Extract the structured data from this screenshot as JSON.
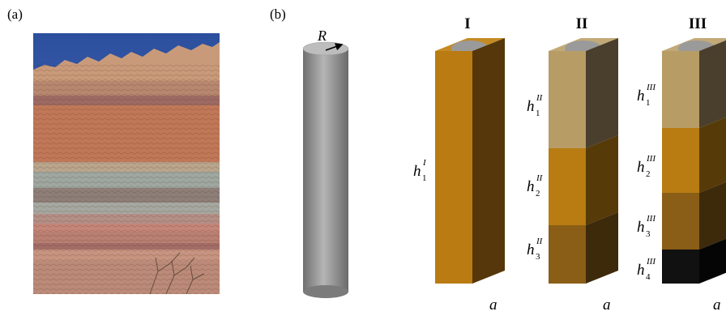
{
  "panels": {
    "a_label": "(a)",
    "b_label": "(b)"
  },
  "cylinder": {
    "radius_label": "R"
  },
  "columns": [
    {
      "id": "I",
      "title": "I",
      "base_label": "a",
      "layers": [
        {
          "sub": "1",
          "sup": "I",
          "color": "#b97b12"
        }
      ]
    },
    {
      "id": "II",
      "title": "II",
      "base_label": "a",
      "layers": [
        {
          "sub": "1",
          "sup": "II",
          "color": "#b89c65"
        },
        {
          "sub": "2",
          "sup": "II",
          "color": "#b87c12"
        },
        {
          "sub": "3",
          "sup": "II",
          "color": "#8a5e16"
        }
      ]
    },
    {
      "id": "III",
      "title": "III",
      "base_label": "a",
      "layers": [
        {
          "sub": "1",
          "sup": "III",
          "color": "#b89c65"
        },
        {
          "sub": "2",
          "sup": "III",
          "color": "#b87c12"
        },
        {
          "sub": "3",
          "sup": "III",
          "color": "#8a5e16"
        },
        {
          "sub": "4",
          "sup": "III",
          "color": "#111111"
        }
      ]
    }
  ],
  "h_symbol": "h"
}
